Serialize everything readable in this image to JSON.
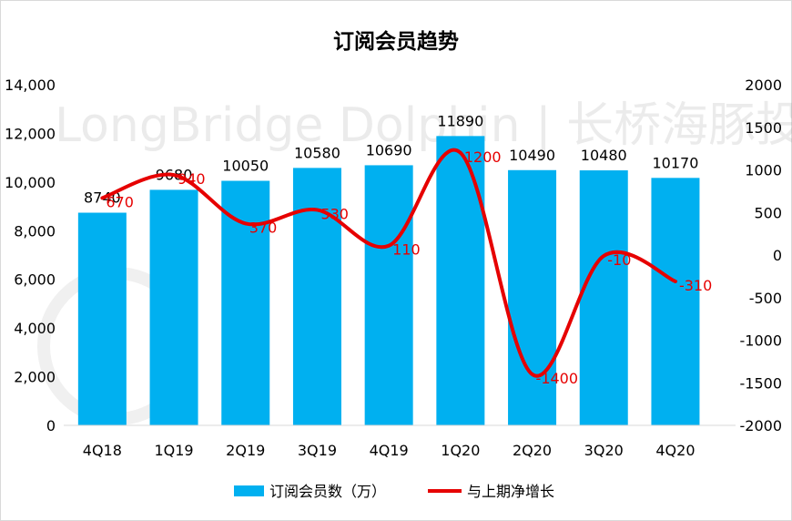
{
  "chart_data": {
    "type": "bar",
    "title": "订阅会员趋势",
    "watermark": "LongBridge Dolphin | 长桥海豚投研",
    "categories": [
      "4Q18",
      "1Q19",
      "2Q19",
      "3Q19",
      "4Q19",
      "1Q20",
      "2Q20",
      "3Q20",
      "4Q20"
    ],
    "series": [
      {
        "name": "订阅会员数（万）",
        "type": "bar",
        "axis": "left",
        "color": "#00b0f0",
        "values": [
          8740,
          9680,
          10050,
          10580,
          10690,
          11890,
          10490,
          10480,
          10170
        ],
        "labels": [
          "8740",
          "9680",
          "10050",
          "10580",
          "10690",
          "11890",
          "10490",
          "10480",
          "10170"
        ]
      },
      {
        "name": "与上期净增长",
        "type": "line",
        "axis": "right",
        "color": "#e60000",
        "values": [
          670,
          940,
          370,
          530,
          110,
          1200,
          -1400,
          -10,
          -310
        ],
        "labels": [
          "670",
          "940",
          "370",
          "530",
          "110",
          "1200",
          "-1400",
          "-10",
          "-310"
        ]
      }
    ],
    "y_left": {
      "min": 0,
      "max": 14000,
      "ticks": [
        "0",
        "2,000",
        "4,000",
        "6,000",
        "8,000",
        "10,000",
        "12,000",
        "14,000"
      ]
    },
    "y_right": {
      "min": -2000,
      "max": 2000,
      "ticks": [
        "-2000",
        "-1500",
        "-1000",
        "-500",
        "0",
        "500",
        "1000",
        "1500",
        "2000"
      ]
    },
    "grid": false,
    "legend": "bottom"
  }
}
